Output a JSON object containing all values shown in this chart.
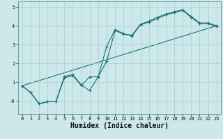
{
  "title": "",
  "xlabel": "Humidex (Indice chaleur)",
  "ylabel": "",
  "bg_color": "#cce8eb",
  "grid_color": "#aaccd0",
  "line_color": "#1a7070",
  "xlim": [
    -0.5,
    23.5
  ],
  "ylim": [
    -0.7,
    5.3
  ],
  "yticks": [
    0,
    1,
    2,
    3,
    4,
    5
  ],
  "ytick_labels": [
    "-0",
    "1",
    "2",
    "3",
    "4",
    "5"
  ],
  "xticks": [
    0,
    1,
    2,
    3,
    4,
    5,
    6,
    7,
    8,
    9,
    10,
    11,
    12,
    13,
    14,
    15,
    16,
    17,
    18,
    19,
    20,
    21,
    22,
    23
  ],
  "line1_x": [
    0,
    1,
    2,
    3,
    4,
    5,
    6,
    7,
    8,
    9,
    10,
    11,
    12,
    13,
    14,
    15,
    16,
    17,
    18,
    19,
    20,
    21,
    22,
    23
  ],
  "line1_y": [
    0.8,
    0.45,
    -0.15,
    -0.05,
    -0.05,
    1.3,
    1.4,
    0.85,
    0.55,
    1.28,
    2.1,
    3.75,
    3.55,
    3.5,
    4.08,
    4.25,
    4.45,
    4.62,
    4.75,
    4.85,
    4.5,
    4.15,
    4.15,
    4.0
  ],
  "line2_x": [
    0,
    1,
    2,
    3,
    4,
    5,
    6,
    7,
    8,
    9,
    10,
    11,
    12,
    13,
    14,
    15,
    16,
    17,
    18,
    19,
    20,
    21,
    22,
    23
  ],
  "line2_y": [
    0.8,
    0.45,
    -0.15,
    -0.05,
    -0.05,
    1.22,
    1.35,
    0.82,
    1.28,
    1.28,
    2.9,
    3.8,
    3.58,
    3.45,
    4.05,
    4.2,
    4.38,
    4.58,
    4.7,
    4.82,
    4.45,
    4.12,
    4.12,
    3.95
  ],
  "line3_x": [
    0,
    23
  ],
  "line3_y": [
    0.8,
    4.0
  ]
}
